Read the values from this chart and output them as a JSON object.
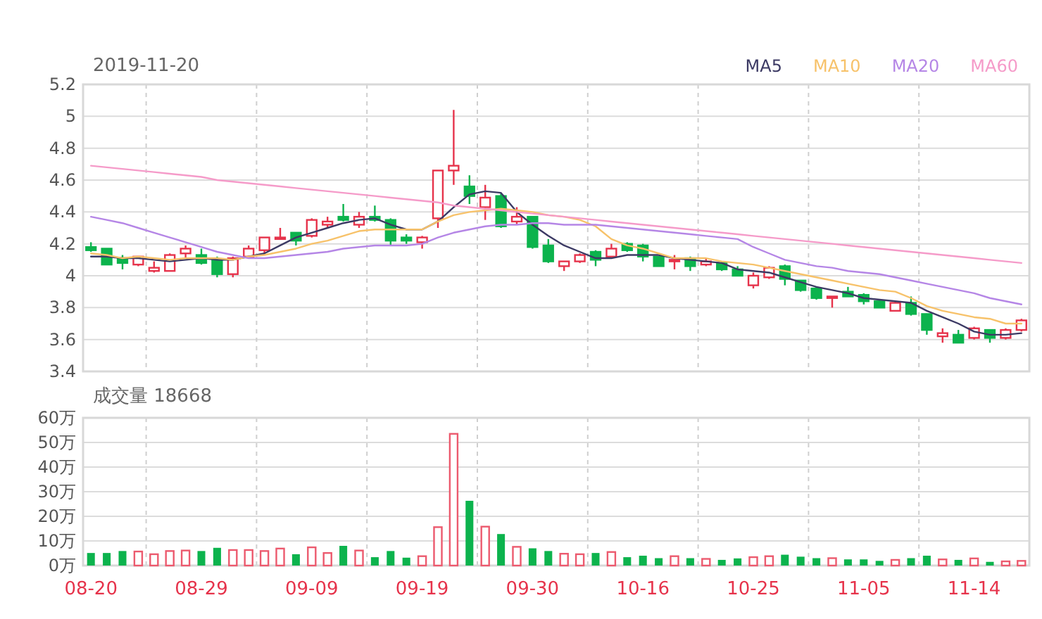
{
  "chart_data": [
    {
      "type": "candlestick",
      "title": "2019-11-20",
      "categories": [
        null,
        null,
        null,
        null,
        null,
        null,
        null,
        null,
        null,
        null,
        null,
        null,
        null,
        null,
        null,
        null,
        null,
        null,
        null,
        null,
        null,
        null,
        null,
        null,
        null,
        null,
        null,
        null,
        null,
        null,
        null,
        null,
        null,
        null,
        null,
        null,
        null,
        null,
        null,
        null,
        null,
        null,
        null,
        null,
        null,
        null,
        null,
        null,
        null,
        null,
        null,
        null,
        null,
        null,
        null,
        null,
        null,
        null,
        null,
        null
      ],
      "ohlc": [
        [
          4.18,
          4.21,
          4.15,
          4.16
        ],
        [
          4.17,
          4.17,
          4.07,
          4.07
        ],
        [
          4.11,
          4.13,
          4.04,
          4.08
        ],
        [
          4.07,
          4.12,
          4.06,
          4.12
        ],
        [
          4.03,
          4.09,
          4.02,
          4.05
        ],
        [
          4.03,
          4.14,
          4.03,
          4.13
        ],
        [
          4.14,
          4.19,
          4.11,
          4.17
        ],
        [
          4.13,
          4.17,
          4.07,
          4.08
        ],
        [
          4.1,
          4.12,
          3.99,
          4.01
        ],
        [
          4.01,
          4.12,
          3.99,
          4.11
        ],
        [
          4.12,
          4.19,
          4.11,
          4.17
        ],
        [
          4.16,
          4.24,
          4.13,
          4.24
        ],
        [
          4.23,
          4.3,
          4.23,
          4.24
        ],
        [
          4.27,
          4.27,
          4.19,
          4.22
        ],
        [
          4.25,
          4.36,
          4.24,
          4.35
        ],
        [
          4.32,
          4.37,
          4.3,
          4.34
        ],
        [
          4.37,
          4.45,
          4.34,
          4.35
        ],
        [
          4.32,
          4.4,
          4.3,
          4.37
        ],
        [
          4.37,
          4.44,
          4.34,
          4.35
        ],
        [
          4.35,
          4.36,
          4.19,
          4.22
        ],
        [
          4.24,
          4.26,
          4.2,
          4.22
        ],
        [
          4.21,
          4.25,
          4.17,
          4.24
        ],
        [
          4.36,
          4.66,
          4.3,
          4.66
        ],
        [
          4.66,
          5.04,
          4.57,
          4.69
        ],
        [
          4.56,
          4.63,
          4.45,
          4.5
        ],
        [
          4.43,
          4.57,
          4.35,
          4.49
        ],
        [
          4.5,
          4.52,
          4.3,
          4.31
        ],
        [
          4.34,
          4.43,
          4.32,
          4.37
        ],
        [
          4.37,
          4.37,
          4.17,
          4.18
        ],
        [
          4.19,
          4.23,
          4.08,
          4.09
        ],
        [
          4.06,
          4.09,
          4.03,
          4.09
        ],
        [
          4.09,
          4.14,
          4.08,
          4.13
        ],
        [
          4.15,
          4.16,
          4.06,
          4.1
        ],
        [
          4.12,
          4.2,
          4.11,
          4.17
        ],
        [
          4.2,
          4.21,
          4.15,
          4.16
        ],
        [
          4.19,
          4.2,
          4.09,
          4.12
        ],
        [
          4.12,
          4.12,
          4.06,
          4.06
        ],
        [
          4.09,
          4.13,
          4.04,
          4.1
        ],
        [
          4.11,
          4.12,
          4.03,
          4.06
        ],
        [
          4.07,
          4.11,
          4.06,
          4.09
        ],
        [
          4.08,
          4.09,
          4.03,
          4.04
        ],
        [
          4.04,
          4.06,
          4.0,
          4.0
        ],
        [
          3.94,
          4.02,
          3.92,
          4.0
        ],
        [
          3.99,
          4.06,
          3.98,
          4.05
        ],
        [
          4.06,
          4.07,
          3.94,
          3.98
        ],
        [
          3.97,
          3.97,
          3.9,
          3.91
        ],
        [
          3.92,
          3.93,
          3.85,
          3.86
        ],
        [
          3.86,
          3.87,
          3.8,
          3.87
        ],
        [
          3.9,
          3.93,
          3.87,
          3.87
        ],
        [
          3.88,
          3.89,
          3.82,
          3.84
        ],
        [
          3.84,
          3.85,
          3.8,
          3.8
        ],
        [
          3.78,
          3.84,
          3.78,
          3.83
        ],
        [
          3.83,
          3.87,
          3.75,
          3.76
        ],
        [
          3.76,
          3.76,
          3.63,
          3.66
        ],
        [
          3.62,
          3.67,
          3.58,
          3.64
        ],
        [
          3.63,
          3.66,
          3.58,
          3.58
        ],
        [
          3.61,
          3.68,
          3.6,
          3.67
        ],
        [
          3.66,
          3.66,
          3.58,
          3.61
        ],
        [
          3.61,
          3.67,
          3.6,
          3.66
        ],
        [
          3.66,
          3.73,
          3.65,
          3.72
        ]
      ],
      "colors": [
        "#0cb34d",
        "#0cb34d",
        "#0cb34d",
        "#e6334b",
        "#e6334b",
        "#e6334b",
        "#e6334b",
        "#0cb34d",
        "#0cb34d",
        "#e6334b",
        "#e6334b",
        "#e6334b",
        "#e6334b",
        "#0cb34d",
        "#e6334b",
        "#e6334b",
        "#0cb34d",
        "#e6334b",
        "#0cb34d",
        "#0cb34d",
        "#0cb34d",
        "#e6334b",
        "#e6334b",
        "#e6334b",
        "#0cb34d",
        "#e6334b",
        "#0cb34d",
        "#e6334b",
        "#0cb34d",
        "#0cb34d",
        "#e6334b",
        "#e6334b",
        "#0cb34d",
        "#e6334b",
        "#0cb34d",
        "#0cb34d",
        "#0cb34d",
        "#e6334b",
        "#0cb34d",
        "#e6334b",
        "#0cb34d",
        "#0cb34d",
        "#e6334b",
        "#e6334b",
        "#0cb34d",
        "#0cb34d",
        "#0cb34d",
        "#e6334b",
        "#0cb34d",
        "#0cb34d",
        "#0cb34d",
        "#e6334b",
        "#0cb34d",
        "#0cb34d",
        "#e6334b",
        "#0cb34d",
        "#e6334b",
        "#0cb34d",
        "#e6334b",
        "#e6334b"
      ],
      "series": [
        {
          "name": "MA5",
          "type": "line",
          "color": "#3c3a64",
          "values": [
            4.12,
            4.12,
            4.11,
            4.11,
            4.1,
            4.09,
            4.1,
            4.11,
            4.1,
            4.1,
            4.12,
            4.14,
            4.19,
            4.24,
            4.27,
            4.3,
            4.33,
            4.35,
            4.36,
            4.32,
            4.29,
            4.29,
            4.34,
            4.43,
            4.51,
            4.53,
            4.52,
            4.4,
            4.32,
            4.25,
            4.19,
            4.15,
            4.11,
            4.11,
            4.13,
            4.13,
            4.13,
            4.11,
            4.1,
            4.09,
            4.08,
            4.04,
            4.03,
            4.02,
            3.99,
            3.96,
            3.93,
            3.91,
            3.89,
            3.86,
            3.85,
            3.84,
            3.83,
            3.78,
            3.74,
            3.7,
            3.65,
            3.63,
            3.63,
            3.64
          ]
        },
        {
          "name": "MA10",
          "type": "line",
          "color": "#f7c26a",
          "values": [
            4.14,
            4.13,
            4.11,
            4.12,
            4.11,
            4.1,
            4.11,
            4.11,
            4.11,
            4.1,
            4.12,
            4.13,
            4.15,
            4.17,
            4.2,
            4.22,
            4.25,
            4.28,
            4.29,
            4.29,
            4.29,
            4.29,
            4.34,
            4.38,
            4.4,
            4.41,
            4.42,
            4.41,
            4.4,
            4.38,
            4.37,
            4.35,
            4.31,
            4.23,
            4.19,
            4.17,
            4.14,
            4.11,
            4.11,
            4.11,
            4.09,
            4.08,
            4.07,
            4.05,
            4.03,
            4.01,
            3.99,
            3.97,
            3.95,
            3.93,
            3.91,
            3.9,
            3.86,
            3.81,
            3.78,
            3.76,
            3.74,
            3.73,
            3.7,
            3.7
          ]
        },
        {
          "name": "MA20",
          "type": "line",
          "color": "#b586e6",
          "values": [
            4.37,
            4.35,
            4.33,
            4.3,
            4.27,
            4.24,
            4.21,
            4.18,
            4.15,
            4.13,
            4.11,
            4.11,
            4.12,
            4.13,
            4.14,
            4.15,
            4.17,
            4.18,
            4.19,
            4.19,
            4.19,
            4.2,
            4.24,
            4.27,
            4.29,
            4.31,
            4.32,
            4.32,
            4.33,
            4.33,
            4.32,
            4.32,
            4.32,
            4.31,
            4.3,
            4.29,
            4.28,
            4.27,
            4.26,
            4.25,
            4.24,
            4.23,
            4.18,
            4.14,
            4.1,
            4.08,
            4.06,
            4.05,
            4.03,
            4.02,
            4.01,
            3.99,
            3.97,
            3.95,
            3.93,
            3.91,
            3.89,
            3.86,
            3.84,
            3.82
          ]
        },
        {
          "name": "MA60",
          "type": "line",
          "color": "#f59bc9",
          "values": [
            4.69,
            4.68,
            4.67,
            4.66,
            4.65,
            4.64,
            4.63,
            4.62,
            4.6,
            4.59,
            4.58,
            4.57,
            4.56,
            4.55,
            4.54,
            4.53,
            4.52,
            4.51,
            4.5,
            4.49,
            4.48,
            4.47,
            4.46,
            4.44,
            4.43,
            4.42,
            4.41,
            4.4,
            4.39,
            4.38,
            4.37,
            4.36,
            4.35,
            4.34,
            4.33,
            4.32,
            4.31,
            4.3,
            4.29,
            4.28,
            4.27,
            4.26,
            4.25,
            4.24,
            4.23,
            4.22,
            4.21,
            4.2,
            4.19,
            4.18,
            4.17,
            4.16,
            4.15,
            4.14,
            4.13,
            4.12,
            4.11,
            4.1,
            4.09,
            4.08
          ]
        }
      ],
      "ylim": [
        3.4,
        5.2
      ],
      "yticks": [
        3.4,
        3.6,
        3.8,
        4,
        4.2,
        4.4,
        4.6,
        4.8,
        5,
        5.2
      ],
      "grid": true,
      "legend": "top right",
      "tick_labels": "y"
    },
    {
      "type": "bar",
      "title": "成交量 18668",
      "categories": [
        "08-20",
        null,
        null,
        null,
        null,
        null,
        null,
        "08-29",
        null,
        null,
        null,
        null,
        null,
        null,
        "09-09",
        null,
        null,
        null,
        null,
        null,
        null,
        "09-19",
        null,
        null,
        null,
        null,
        null,
        null,
        "09-30",
        null,
        null,
        null,
        null,
        null,
        null,
        "10-16",
        null,
        null,
        null,
        null,
        null,
        null,
        "10-25",
        null,
        null,
        null,
        null,
        null,
        null,
        "11-05",
        null,
        null,
        null,
        null,
        null,
        null,
        "11-14",
        null,
        null,
        null
      ],
      "values": [
        5.1,
        5.1,
        5.9,
        5.7,
        4.6,
        5.9,
        6.1,
        5.9,
        7.2,
        6.3,
        6.3,
        5.9,
        6.9,
        4.6,
        7.4,
        5.1,
        8,
        6.1,
        3.4,
        5.9,
        3.2,
        3.8,
        15.6,
        53.5,
        26.3,
        15.8,
        12.8,
        7.6,
        7,
        5.9,
        4.8,
        4.6,
        5.1,
        5.5,
        3.4,
        4,
        3,
        3.8,
        3,
        2.7,
        2.3,
        2.9,
        3.4,
        3.8,
        4.4,
        3.6,
        3,
        3,
        2.5,
        2.5,
        1.9,
        2.3,
        3,
        4,
        2.5,
        2.3,
        2.9,
        1.5,
        1.7,
        1.9
      ],
      "colors": [
        "#0cb34d",
        "#0cb34d",
        "#0cb34d",
        "#ec5a6e",
        "#ec5a6e",
        "#ec5a6e",
        "#ec5a6e",
        "#0cb34d",
        "#0cb34d",
        "#ec5a6e",
        "#ec5a6e",
        "#ec5a6e",
        "#ec5a6e",
        "#0cb34d",
        "#ec5a6e",
        "#ec5a6e",
        "#0cb34d",
        "#ec5a6e",
        "#0cb34d",
        "#0cb34d",
        "#0cb34d",
        "#ec5a6e",
        "#ec5a6e",
        "#ec5a6e",
        "#0cb34d",
        "#ec5a6e",
        "#0cb34d",
        "#ec5a6e",
        "#0cb34d",
        "#0cb34d",
        "#ec5a6e",
        "#ec5a6e",
        "#0cb34d",
        "#ec5a6e",
        "#0cb34d",
        "#0cb34d",
        "#0cb34d",
        "#ec5a6e",
        "#0cb34d",
        "#ec5a6e",
        "#0cb34d",
        "#0cb34d",
        "#ec5a6e",
        "#ec5a6e",
        "#0cb34d",
        "#0cb34d",
        "#0cb34d",
        "#ec5a6e",
        "#0cb34d",
        "#0cb34d",
        "#0cb34d",
        "#ec5a6e",
        "#0cb34d",
        "#0cb34d",
        "#ec5a6e",
        "#0cb34d",
        "#ec5a6e",
        "#0cb34d",
        "#ec5a6e",
        "#ec5a6e"
      ],
      "ylim": [
        0,
        60
      ],
      "yticks": [
        {
          "value": 0,
          "label": "0万"
        },
        {
          "value": 10,
          "label": "10万"
        },
        {
          "value": 20,
          "label": "20万"
        },
        {
          "value": 30,
          "label": "30万"
        },
        {
          "value": 40,
          "label": "40万"
        },
        {
          "value": 50,
          "label": "50万"
        },
        {
          "value": 60,
          "label": "60万"
        }
      ],
      "grid": true
    }
  ]
}
